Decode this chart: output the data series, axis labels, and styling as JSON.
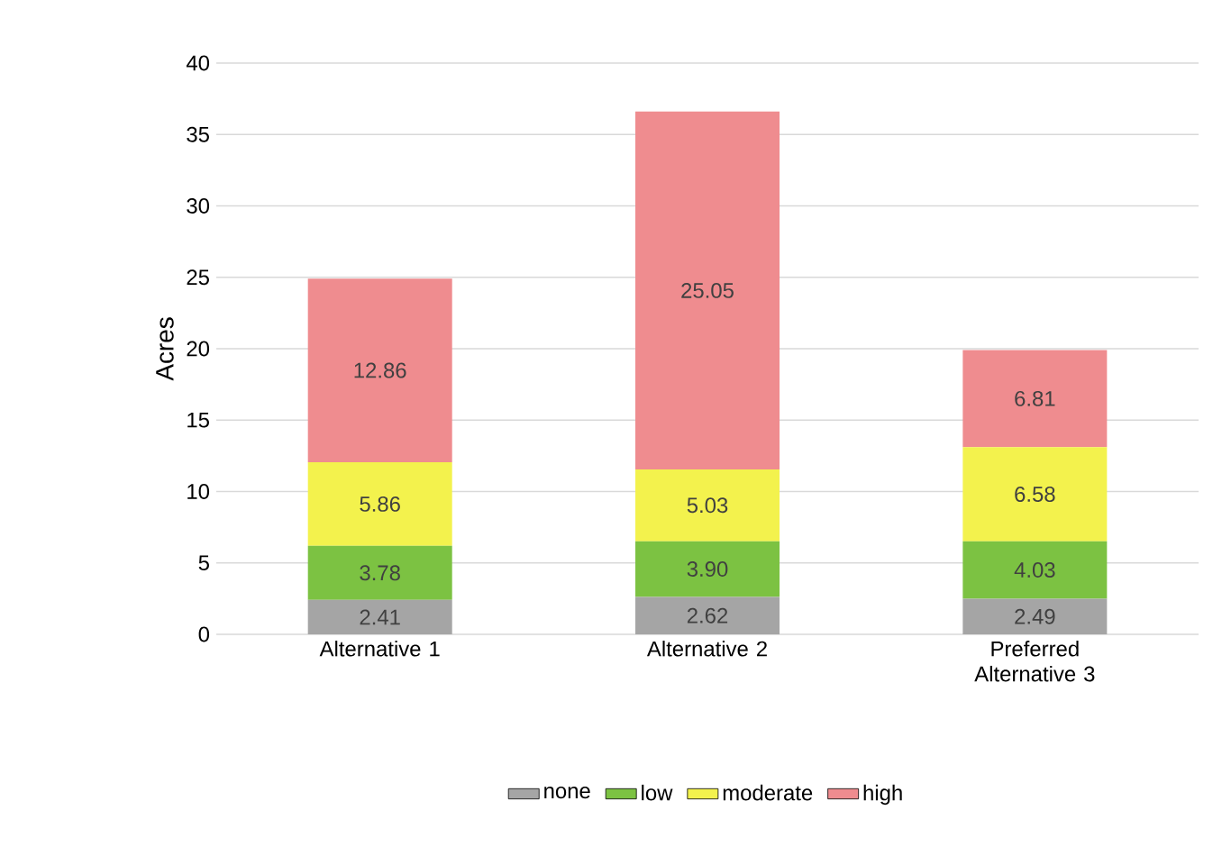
{
  "chart_data": {
    "type": "bar",
    "stacked": true,
    "ylabel": "Acres",
    "categories": [
      "Alternative 1",
      "Alternative 2",
      "Preferred Alternative 3"
    ],
    "ylim": [
      0,
      40
    ],
    "yticks": [
      0,
      5,
      10,
      15,
      20,
      25,
      30,
      35,
      40
    ],
    "grid": "y",
    "legend": "bottom",
    "series": [
      {
        "name": "none",
        "color": "#a5a5a5",
        "values": [
          2.41,
          2.62,
          2.49
        ],
        "value_labels": [
          "2.41",
          "2.62",
          "2.49"
        ]
      },
      {
        "name": "low",
        "color": "#7cc242",
        "values": [
          3.78,
          3.9,
          4.03
        ],
        "value_labels": [
          "3.78",
          "3.90",
          "4.03"
        ]
      },
      {
        "name": "moderate",
        "color": "#f3f24d",
        "values": [
          5.86,
          5.03,
          6.58
        ],
        "value_labels": [
          "5.86",
          "5.03",
          "6.58"
        ]
      },
      {
        "name": "high",
        "color": "#ef8c8f",
        "values": [
          12.86,
          25.05,
          6.81
        ],
        "value_labels": [
          "12.86",
          "25.05",
          "6.81"
        ]
      }
    ]
  }
}
